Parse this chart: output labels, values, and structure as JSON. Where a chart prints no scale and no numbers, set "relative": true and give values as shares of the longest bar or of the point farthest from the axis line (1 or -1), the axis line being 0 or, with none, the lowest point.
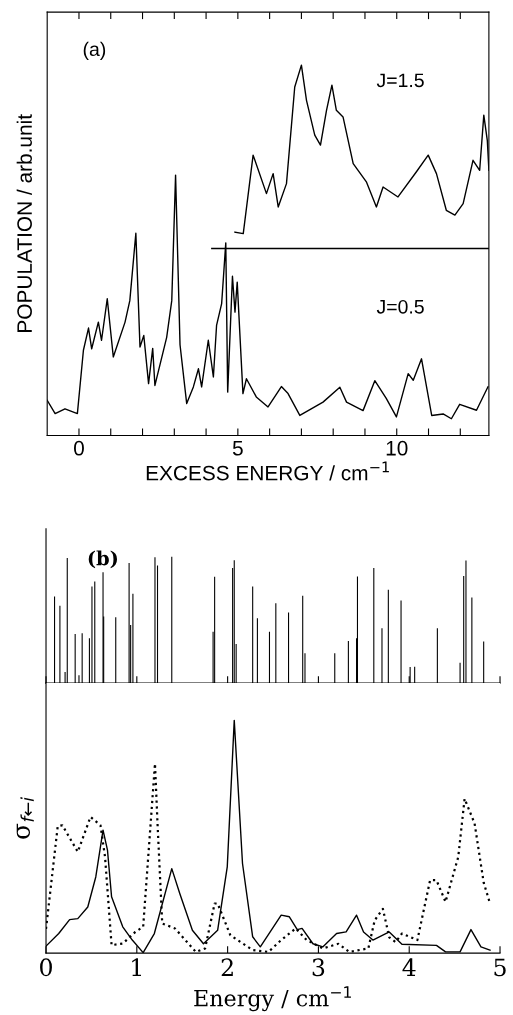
{
  "chart_data": [
    {
      "type": "line",
      "xlabel": "EXCESS ENERGY / cm$^{−1}$",
      "ylabel": "POPULATION / arb.unit",
      "annotations": [
        "(a)"
      ],
      "relative": true,
      "xlim": [
        -1,
        12.9
      ],
      "xticks": [
        0,
        {
          "value": 1,
          "label": null
        },
        {
          "value": 2,
          "label": null
        },
        {
          "value": 3,
          "label": null
        },
        {
          "value": 4,
          "label": null
        },
        5,
        {
          "value": 6,
          "label": null
        },
        {
          "value": 7,
          "label": null
        },
        {
          "value": 8,
          "label": null
        },
        {
          "value": 9,
          "label": null
        },
        10,
        {
          "value": 11,
          "label": null
        },
        {
          "value": 12,
          "label": null
        }
      ],
      "series": [
        {
          "name": "J=0.5",
          "color": "#000000",
          "x": [
            -1.0,
            -0.75,
            -0.44,
            -0.05,
            0.14,
            0.3,
            0.4,
            0.61,
            0.71,
            0.89,
            1.08,
            1.45,
            1.6,
            1.79,
            1.92,
            2.04,
            2.19,
            2.32,
            2.39,
            2.76,
            2.92,
            3.04,
            3.18,
            3.39,
            3.6,
            3.76,
            3.86,
            4.07,
            4.23,
            4.33,
            4.49,
            4.62,
            4.68,
            4.83,
            4.91,
            4.98,
            5.16,
            5.27,
            5.58,
            5.95,
            6.37,
            6.58,
            6.95,
            7.68,
            8.21,
            8.42,
            8.94,
            9.31,
            9.67,
            9.99,
            10.36,
            10.52,
            10.78,
            11.1,
            11.46,
            11.72,
            11.98,
            12.51,
            12.87
          ],
          "values": [
            0.095,
            0.059,
            0.072,
            0.059,
            0.23,
            0.29,
            0.234,
            0.306,
            0.257,
            0.369,
            0.212,
            0.306,
            0.364,
            0.546,
            0.239,
            0.27,
            0.14,
            0.235,
            0.135,
            0.265,
            0.364,
            0.703,
            0.245,
            0.086,
            0.131,
            0.18,
            0.131,
            0.257,
            0.158,
            0.297,
            0.356,
            0.52,
            0.117,
            0.43,
            0.333,
            0.414,
            0.113,
            0.153,
            0.104,
            0.077,
            0.132,
            0.113,
            0.054,
            0.09,
            0.13,
            0.09,
            0.067,
            0.148,
            0.1,
            0.05,
            0.167,
            0.149,
            0.207,
            0.054,
            0.058,
            0.045,
            0.084,
            0.068,
            0.131
          ]
        },
        {
          "name": "J=1.5",
          "color": "#000000",
          "x": [
            4.91,
            5.17,
            5.48,
            5.9,
            6.11,
            6.27,
            6.53,
            6.79,
            7.0,
            7.16,
            7.42,
            7.6,
            7.79,
            7.96,
            8.1,
            8.31,
            8.63,
            9.05,
            9.36,
            9.57,
            10.04,
            10.62,
            10.99,
            11.25,
            11.56,
            11.83,
            12.09,
            12.4,
            12.61,
            12.74,
            12.85,
            12.9
          ],
          "values": [
            0.549,
            0.545,
            0.757,
            0.653,
            0.707,
            0.617,
            0.68,
            0.941,
            1.0,
            0.905,
            0.811,
            0.784,
            0.878,
            0.946,
            0.878,
            0.86,
            0.734,
            0.684,
            0.617,
            0.671,
            0.644,
            0.712,
            0.757,
            0.707,
            0.608,
            0.595,
            0.626,
            0.743,
            0.716,
            0.865,
            0.797,
            0.716
          ]
        },
        {
          "color": "#000000",
          "x": [
            4.18,
            12.9
          ],
          "values": [
            0.505,
            0.505
          ]
        }
      ]
    },
    {
      "type": "bar",
      "annotations": [
        "(b)"
      ],
      "relative": true,
      "tick_labels": false,
      "xlim": [
        0,
        5
      ],
      "xticks": [
        0,
        1,
        2,
        3,
        4,
        5
      ],
      "series": [
        {
          "color": "#000000",
          "x": [
            0.094,
            0.153,
            0.21,
            0.234,
            0.321,
            0.363,
            0.398,
            0.478,
            0.506,
            0.537,
            0.628,
            0.635,
            0.768,
            0.915,
            0.932,
            0.957,
            1.2,
            1.228,
            1.385,
            1.84,
            1.857,
            2.055,
            2.073,
            2.094,
            2.276,
            2.328,
            2.461,
            2.531,
            2.671,
            2.827,
            2.852,
            3.18,
            3.33,
            3.42,
            3.43,
            3.61,
            3.7,
            3.77,
            3.91,
            4.01,
            4.06,
            4.31,
            4.56,
            4.6,
            4.625,
            4.69,
            4.82
          ],
          "values": [
            0.685,
            0.611,
            0.087,
            0.989,
            0.388,
            0.063,
            0.394,
            0.354,
            0.764,
            0.804,
            0.876,
            0.526,
            0.521,
            0.95,
            0.46,
            0.706,
            0.995,
            0.929,
            1.0,
            0.407,
            0.84,
            0.911,
            0.972,
            0.309,
            0.764,
            0.513,
            0.407,
            0.632,
            0.558,
            0.69,
            0.236,
            0.236,
            0.333,
            0.354,
            0.843,
            0.911,
            0.434,
            0.738,
            0.653,
            0.127,
            0.13,
            0.434,
            0.161,
            0.847,
            0.97,
            0.677,
            0.328
          ]
        }
      ]
    },
    {
      "type": "line",
      "xlabel": "Energy / cm$^{−1}$",
      "ylabel": "σ$_{f←i}$",
      "relative": true,
      "xlim": [
        0,
        5
      ],
      "xticks": [
        0,
        1,
        2,
        3,
        4,
        5
      ],
      "series": [
        {
          "color": "#000000",
          "line_style": "solid",
          "x": [
            0,
            0.14,
            0.26,
            0.35,
            0.46,
            0.548,
            0.628,
            0.677,
            0.722,
            0.845,
            0.95,
            1.07,
            1.193,
            1.385,
            1.473,
            1.612,
            1.734,
            1.89,
            1.996,
            2.073,
            2.164,
            2.276,
            2.36,
            2.59,
            2.68,
            2.767,
            2.82,
            2.94,
            3.05,
            3.2,
            3.305,
            3.42,
            3.497,
            3.6,
            3.78,
            3.92,
            4.3,
            4.4,
            4.56,
            4.68,
            4.79,
            4.89
          ],
          "values": [
            0.03,
            0.084,
            0.144,
            0.148,
            0.198,
            0.327,
            0.528,
            0.442,
            0.242,
            0.113,
            0.056,
            0.002,
            0.084,
            0.363,
            0.256,
            0.098,
            0.04,
            0.098,
            0.37,
            1.0,
            0.385,
            0.07,
            0.027,
            0.163,
            0.156,
            0.101,
            0.106,
            0.04,
            0.027,
            0.084,
            0.091,
            0.163,
            0.091,
            0.056,
            0.091,
            0.038,
            0.033,
            0.005,
            0.005,
            0.101,
            0.027,
            0.013
          ]
        },
        {
          "color": "#000000",
          "line_style": "dotted",
          "x": [
            0,
            0.129,
            0.18,
            0.35,
            0.49,
            0.6,
            0.65,
            0.722,
            0.845,
            0.984,
            1.07,
            1.2,
            1.228,
            1.28,
            1.42,
            1.65,
            1.752,
            1.857,
            1.89,
            2.03,
            2.276,
            2.45,
            2.59,
            2.75,
            2.87,
            3.05,
            3.22,
            3.34,
            3.55,
            3.62,
            3.71,
            3.78,
            3.85,
            3.92,
            4.09,
            4.23,
            4.3,
            4.4,
            4.54,
            4.61,
            4.72,
            4.82,
            4.89
          ],
          "values": [
            0.104,
            0.545,
            0.549,
            0.435,
            0.585,
            0.549,
            0.413,
            0.034,
            0.041,
            0.091,
            0.113,
            0.814,
            0.557,
            0.127,
            0.106,
            0.005,
            0.02,
            0.213,
            0.213,
            0.077,
            0.013,
            0.005,
            0.056,
            0.106,
            0.056,
            0.02,
            0.04,
            0.005,
            0.02,
            0.141,
            0.19,
            0.068,
            0.047,
            0.084,
            0.056,
            0.313,
            0.313,
            0.22,
            0.413,
            0.663,
            0.557,
            0.303,
            0.213
          ]
        }
      ]
    }
  ]
}
